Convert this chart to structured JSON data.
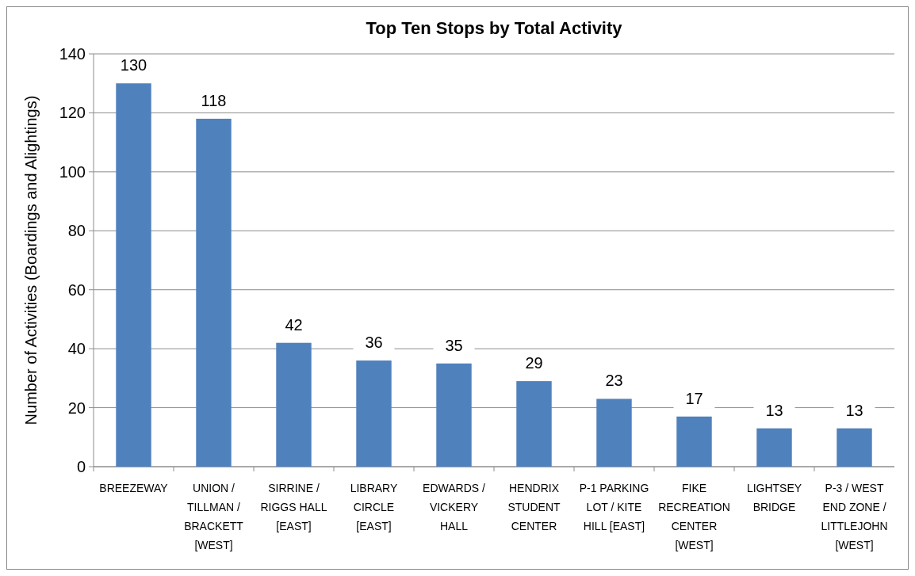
{
  "chart_data": {
    "type": "bar",
    "title": "Top Ten Stops by Total Activity",
    "ylabel": "Number of Activities (Boardings and Alightings)",
    "categories": [
      "BREEZEWAY",
      "UNION / TILLMAN / BRACKETT [WEST]",
      "SIRRINE / RIGGS HALL [EAST]",
      "LIBRARY CIRCLE [EAST]",
      "EDWARDS / VICKERY HALL",
      "HENDRIX STUDENT CENTER",
      "P-1 PARKING LOT / KITE HILL [EAST]",
      "FIKE RECREATION CENTER [WEST]",
      "LIGHTSEY BRIDGE",
      "P-3 / WEST END ZONE / LITTLEJOHN [WEST]"
    ],
    "values": [
      130,
      118,
      42,
      36,
      35,
      29,
      23,
      17,
      13,
      13
    ],
    "color": "#4f81bd",
    "ylim": [
      0,
      140
    ],
    "yticks": [
      0,
      20,
      40,
      60,
      80,
      100,
      120,
      140
    ],
    "grid": "y",
    "data_labels": true
  }
}
